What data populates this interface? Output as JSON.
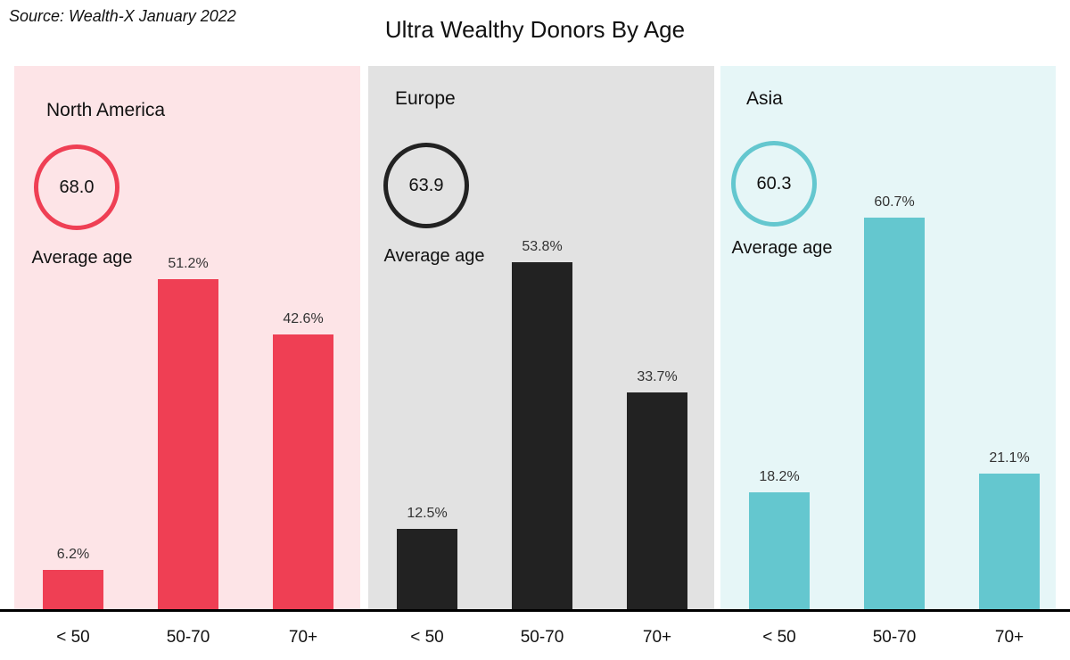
{
  "source": "Source: Wealth-X January 2022",
  "title": "Ultra Wealthy Donors By Age",
  "average_label": "Average age",
  "chart_data": {
    "type": "bar",
    "title": "Ultra Wealthy Donors By Age",
    "categories": [
      "< 50",
      "50-70",
      "70+"
    ],
    "ylim": [
      0,
      70
    ],
    "panels": [
      {
        "region": "North America",
        "average_age": "68.0",
        "color": "#ef3f54",
        "background": "#fde4e7",
        "values": [
          6.2,
          51.2,
          42.6
        ],
        "value_labels": [
          "6.2%",
          "51.2%",
          "42.6%"
        ]
      },
      {
        "region": "Europe",
        "average_age": "63.9",
        "color": "#222222",
        "background": "#e2e2e2",
        "values": [
          12.5,
          53.8,
          33.7
        ],
        "value_labels": [
          "12.5%",
          "53.8%",
          "33.7%"
        ]
      },
      {
        "region": "Asia",
        "average_age": "60.3",
        "color": "#64c7cf",
        "background": "#e6f6f7",
        "values": [
          18.2,
          60.7,
          21.1
        ],
        "value_labels": [
          "18.2%",
          "60.7%",
          "21.1%"
        ]
      }
    ]
  }
}
